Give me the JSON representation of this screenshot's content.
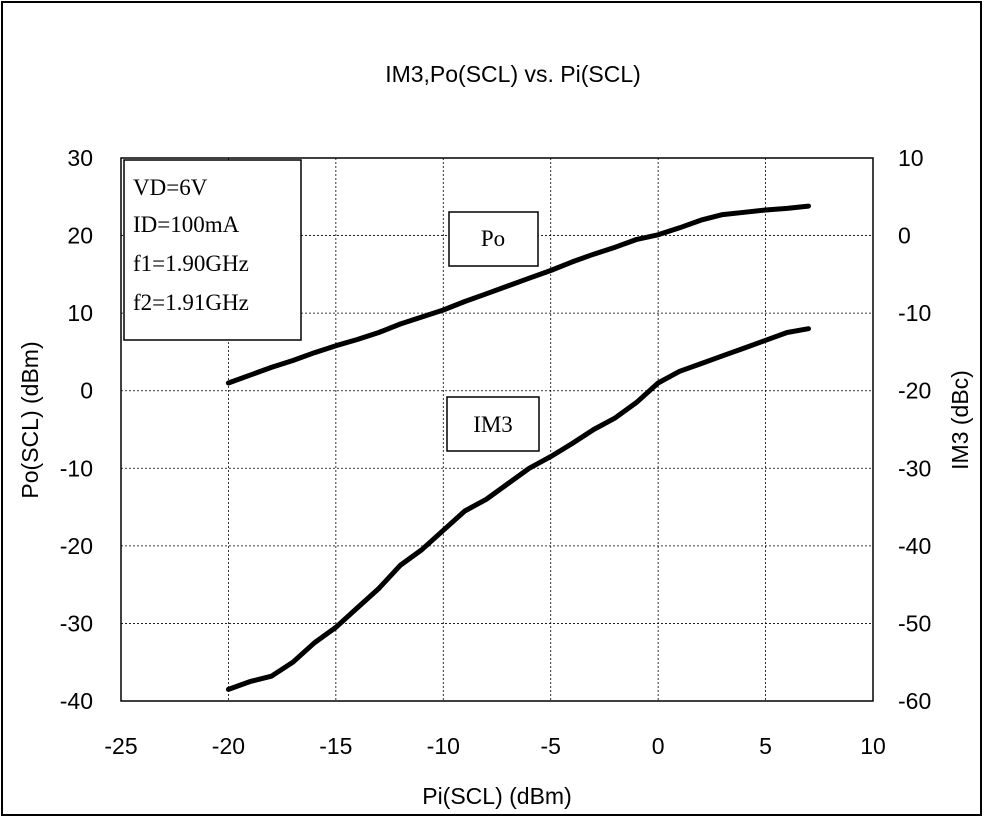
{
  "chart_data": {
    "type": "line",
    "title": "IM3,Po(SCL) vs. Pi(SCL)",
    "xlabel": "Pi(SCL)  (dBm)",
    "ylabel": "Po(SCL) (dBm)",
    "y2label": "IM3 (dBc)",
    "xlim": [
      -25,
      10
    ],
    "ylim": [
      -40,
      30
    ],
    "y2lim": [
      -60,
      10
    ],
    "xticks": [
      "-25",
      "-20",
      "-15",
      "-10",
      "-5",
      "0",
      "5",
      "10"
    ],
    "yticks": [
      "30",
      "20",
      "10",
      "0",
      "-10",
      "-20",
      "-30",
      "-40"
    ],
    "y2ticks": [
      "10",
      "0",
      "-10",
      "-20",
      "-30",
      "-40",
      "-50",
      "-60"
    ],
    "grid": true,
    "conditions": [
      "VD=6V",
      "ID=100mA",
      "f1=1.90GHz",
      "f2=1.91GHz"
    ],
    "series": [
      {
        "name": "Po",
        "axis": "left",
        "x": [
          -20,
          -19,
          -18,
          -17,
          -16,
          -15,
          -14,
          -13,
          -12,
          -11,
          -10,
          -9,
          -8,
          -7,
          -6,
          -5,
          -4,
          -3,
          -2,
          -1,
          0,
          1,
          2,
          3,
          4,
          5,
          6,
          7
        ],
        "values": [
          1.0,
          2.0,
          3.0,
          3.9,
          4.9,
          5.8,
          6.6,
          7.5,
          8.6,
          9.5,
          10.4,
          11.5,
          12.5,
          13.5,
          14.5,
          15.5,
          16.6,
          17.6,
          18.5,
          19.5,
          20.1,
          21.0,
          22.0,
          22.7,
          23.0,
          23.3,
          23.5,
          23.8
        ]
      },
      {
        "name": "IM3",
        "axis": "right",
        "x": [
          -20,
          -19,
          -18,
          -17,
          -16,
          -15,
          -14,
          -13,
          -12,
          -11,
          -10,
          -9,
          -8,
          -7,
          -6,
          -5,
          -4,
          -3,
          -2,
          -1,
          0,
          1,
          2,
          3,
          4,
          5,
          6,
          7
        ],
        "values": [
          -58.5,
          -57.5,
          -56.8,
          -55.0,
          -52.5,
          -50.5,
          -48.0,
          -45.5,
          -42.5,
          -40.5,
          -38.0,
          -35.5,
          -34.0,
          -32.0,
          -30.0,
          -28.5,
          -26.8,
          -25.0,
          -23.5,
          -21.5,
          -19.0,
          -17.5,
          -16.5,
          -15.5,
          -14.5,
          -13.5,
          -12.5,
          -12.0
        ]
      }
    ]
  }
}
